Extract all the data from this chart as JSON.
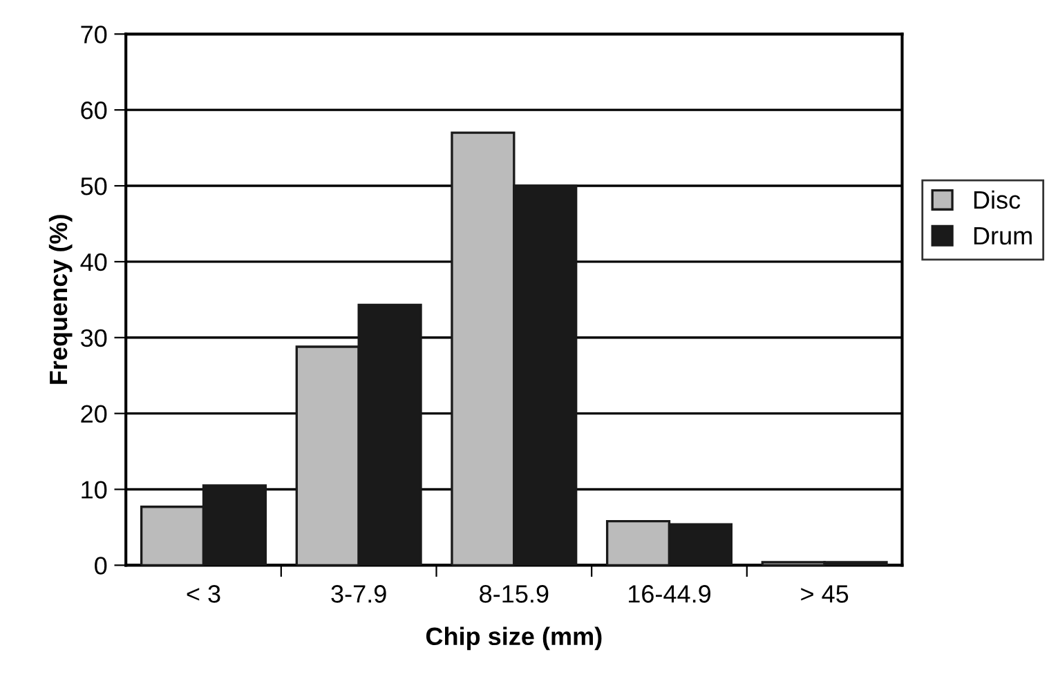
{
  "chart_data": {
    "type": "bar",
    "xlabel": "Chip size (mm)",
    "ylabel": "Frequency (%)",
    "categories": [
      "< 3",
      "3-7.9",
      "8-15.9",
      "16-44.9",
      "> 45"
    ],
    "series": [
      {
        "name": "Disc",
        "color": "#bbbbbb",
        "values": [
          7.7,
          28.8,
          57,
          5.8,
          0.4
        ]
      },
      {
        "name": "Drum",
        "color": "#1a1a1a",
        "values": [
          10.5,
          34.3,
          50,
          5.4,
          0.4
        ]
      }
    ],
    "ylim": [
      0,
      70
    ],
    "yticks": [
      0,
      10,
      20,
      30,
      40,
      50,
      60,
      70
    ],
    "grid": "y",
    "legend": "right"
  }
}
